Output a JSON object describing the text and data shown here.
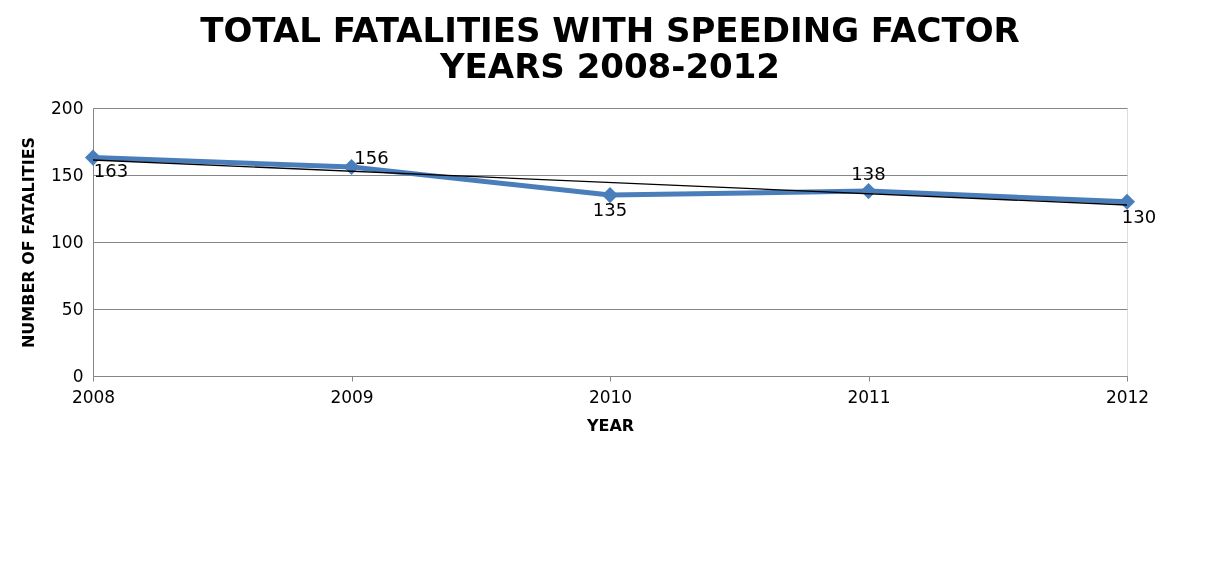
{
  "chart_data": {
    "type": "line",
    "title": "TOTAL FATALITIES WITH SPEEDING FACTOR YEARS 2008-2012",
    "xlabel": "YEAR",
    "ylabel": "NUMBER OF FATALITIES",
    "x": [
      2008,
      2009,
      2010,
      2011,
      2012
    ],
    "xlim": [
      2008,
      2012
    ],
    "xticks": [
      2008,
      2009,
      2010,
      2011,
      2012
    ],
    "ylim": [
      0,
      200
    ],
    "yticks": [
      0,
      50,
      100,
      150,
      200
    ],
    "grid": "y",
    "marker": "diamond",
    "line_style": "solid",
    "series": [
      {
        "color": "#4a7ebb",
        "values": [
          163,
          156,
          135,
          138,
          130
        ],
        "value_labels": [
          "163",
          "156",
          "135",
          "138",
          "130"
        ]
      },
      {
        "type": "line",
        "color": "#000000",
        "x": [
          2008,
          2012
        ],
        "values": [
          161.2,
          127.6
        ],
        "marker": "none"
      }
    ]
  }
}
